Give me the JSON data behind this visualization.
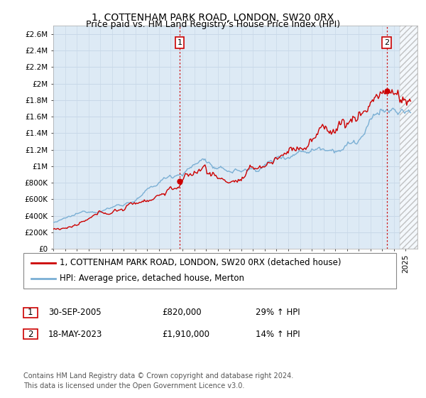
{
  "title": "1, COTTENHAM PARK ROAD, LONDON, SW20 0RX",
  "subtitle": "Price paid vs. HM Land Registry's House Price Index (HPI)",
  "ylabel_ticks": [
    "£0",
    "£200K",
    "£400K",
    "£600K",
    "£800K",
    "£1M",
    "£1.2M",
    "£1.4M",
    "£1.6M",
    "£1.8M",
    "£2M",
    "£2.2M",
    "£2.4M",
    "£2.6M"
  ],
  "ytick_values": [
    0,
    200000,
    400000,
    600000,
    800000,
    1000000,
    1200000,
    1400000,
    1600000,
    1800000,
    2000000,
    2200000,
    2400000,
    2600000
  ],
  "ylim": [
    0,
    2700000
  ],
  "xlim_start": 1995.0,
  "xlim_end": 2026.0,
  "sale1_date": 2005.75,
  "sale1_price": 820000,
  "sale1_label": "1",
  "sale2_date": 2023.38,
  "sale2_price": 1910000,
  "sale2_label": "2",
  "legend_line1": "1, COTTENHAM PARK ROAD, LONDON, SW20 0RX (detached house)",
  "legend_line2": "HPI: Average price, detached house, Merton",
  "table_row1": [
    "1",
    "30-SEP-2005",
    "£820,000",
    "29% ↑ HPI"
  ],
  "table_row2": [
    "2",
    "18-MAY-2023",
    "£1,910,000",
    "14% ↑ HPI"
  ],
  "footnote": "Contains HM Land Registry data © Crown copyright and database right 2024.\nThis data is licensed under the Open Government Licence v3.0.",
  "price_color": "#cc0000",
  "hpi_color": "#7aafd4",
  "grid_color": "#c8d8e8",
  "background_color": "#ffffff",
  "plot_bg_color": "#ddeaf5",
  "vline_color": "#cc0000",
  "title_fontsize": 10,
  "subtitle_fontsize": 9,
  "tick_fontsize": 7.5,
  "legend_fontsize": 8.5,
  "table_fontsize": 8.5,
  "footnote_fontsize": 7
}
